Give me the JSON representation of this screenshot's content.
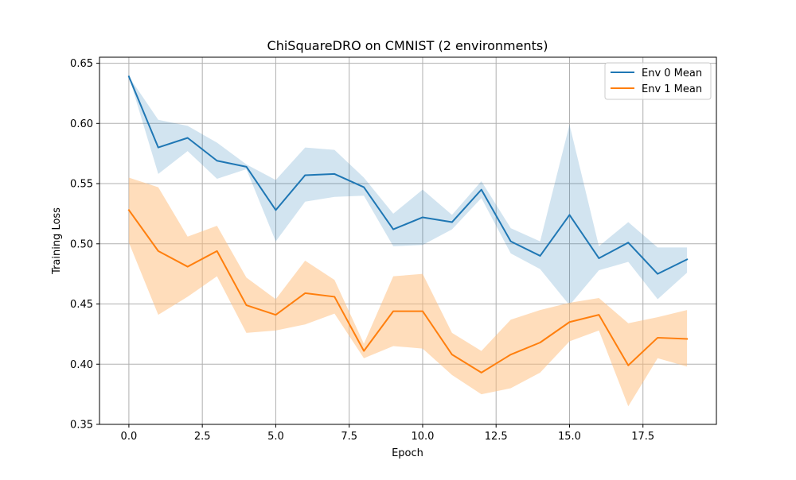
{
  "chart_data": {
    "type": "line",
    "title": "ChiSquareDRO on CMNIST (2 environments)",
    "xlabel": "Epoch",
    "ylabel": "Training Loss",
    "xlim": [
      -1,
      20
    ],
    "ylim": [
      0.35,
      0.655
    ],
    "xticks": [
      0.0,
      2.5,
      5.0,
      7.5,
      10.0,
      12.5,
      15.0,
      17.5
    ],
    "xtick_labels": [
      "0.0",
      "2.5",
      "5.0",
      "7.5",
      "10.0",
      "12.5",
      "15.0",
      "17.5"
    ],
    "yticks": [
      0.35,
      0.4,
      0.45,
      0.5,
      0.55,
      0.6,
      0.65
    ],
    "ytick_labels": [
      "0.35",
      "0.40",
      "0.45",
      "0.50",
      "0.55",
      "0.60",
      "0.65"
    ],
    "grid": true,
    "legend_position": "top-right",
    "x": [
      0,
      1,
      2,
      3,
      4,
      5,
      6,
      7,
      8,
      9,
      10,
      11,
      12,
      13,
      14,
      15,
      16,
      17,
      18,
      19
    ],
    "series": [
      {
        "name": "Env 0 Mean",
        "color": "#1f77b4",
        "band_color": "#1f77b4",
        "values": [
          0.639,
          0.58,
          0.588,
          0.569,
          0.564,
          0.528,
          0.557,
          0.558,
          0.547,
          0.512,
          0.522,
          0.518,
          0.545,
          0.502,
          0.49,
          0.524,
          0.488,
          0.501,
          0.475,
          0.487
        ],
        "lower": [
          0.639,
          0.558,
          0.577,
          0.554,
          0.562,
          0.502,
          0.535,
          0.539,
          0.54,
          0.498,
          0.499,
          0.512,
          0.538,
          0.492,
          0.479,
          0.449,
          0.478,
          0.485,
          0.454,
          0.476
        ],
        "upper": [
          0.639,
          0.603,
          0.598,
          0.584,
          0.566,
          0.553,
          0.58,
          0.578,
          0.555,
          0.525,
          0.545,
          0.524,
          0.552,
          0.513,
          0.502,
          0.599,
          0.498,
          0.518,
          0.497,
          0.497
        ]
      },
      {
        "name": "Env 1 Mean",
        "color": "#ff7f0e",
        "band_color": "#ffbb78",
        "values": [
          0.528,
          0.494,
          0.481,
          0.494,
          0.449,
          0.441,
          0.459,
          0.456,
          0.411,
          0.444,
          0.444,
          0.408,
          0.393,
          0.408,
          0.418,
          0.435,
          0.441,
          0.399,
          0.422,
          0.421
        ],
        "lower": [
          0.501,
          0.441,
          0.456,
          0.473,
          0.426,
          0.428,
          0.433,
          0.442,
          0.405,
          0.415,
          0.413,
          0.391,
          0.375,
          0.38,
          0.393,
          0.419,
          0.428,
          0.365,
          0.405,
          0.398
        ],
        "upper": [
          0.555,
          0.547,
          0.506,
          0.515,
          0.472,
          0.454,
          0.486,
          0.47,
          0.417,
          0.473,
          0.475,
          0.426,
          0.411,
          0.437,
          0.445,
          0.451,
          0.455,
          0.434,
          0.439,
          0.445
        ]
      }
    ]
  }
}
